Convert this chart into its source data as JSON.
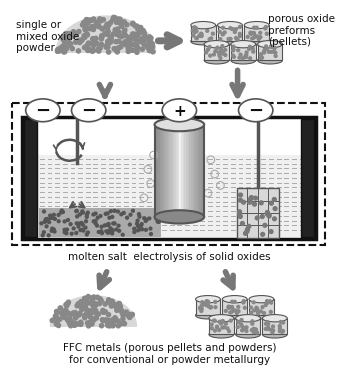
{
  "bg_color": "#ffffff",
  "arrow_color": "#777777",
  "title_top_left": "single or\nmixed oxide\npowder",
  "title_top_right": "porous oxide\npreforms\n(pellets)",
  "title_mid": "molten salt  electrolysis of solid oxides",
  "title_bottom": "FFC metals (porous pellets and powders)\nfor conventional or powder metallurgy",
  "figsize": [
    3.51,
    3.7
  ],
  "dpi": 100
}
